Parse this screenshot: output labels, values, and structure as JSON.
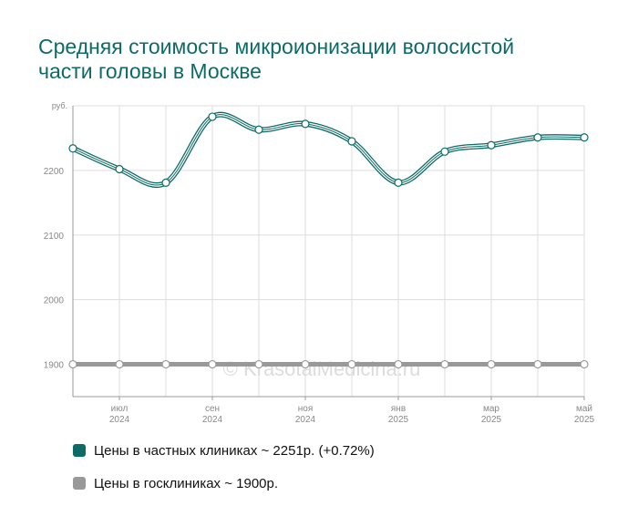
{
  "page": {
    "title": "Средняя стоимость микроионизации волосистой части головы в Москве"
  },
  "chart_data": {
    "type": "line",
    "unit": "руб.",
    "ylim": [
      1850,
      2300
    ],
    "yticks": [
      1900,
      2000,
      2100,
      2200
    ],
    "x": [
      0,
      1,
      2,
      3,
      4,
      5,
      6,
      7,
      8,
      9,
      10,
      11
    ],
    "xtick_labels": [
      {
        "i": 1,
        "month": "июл",
        "year": "2024"
      },
      {
        "i": 3,
        "month": "сен",
        "year": "2024"
      },
      {
        "i": 5,
        "month": "ноя",
        "year": "2024"
      },
      {
        "i": 7,
        "month": "янв",
        "year": "2025"
      },
      {
        "i": 9,
        "month": "мар",
        "year": "2025"
      },
      {
        "i": 11,
        "month": "май",
        "year": "2025"
      }
    ],
    "grid": true,
    "series": [
      {
        "name": "Цены в частных клиниках",
        "color": "#0d6b67",
        "values": [
          2234,
          2202,
          2181,
          2283,
          2263,
          2272,
          2245,
          2181,
          2229,
          2239,
          2251,
          2251
        ]
      },
      {
        "name": "Цены в госклиниках",
        "color": "#9a9a9a",
        "values": [
          1900,
          1900,
          1900,
          1900,
          1900,
          1900,
          1900,
          1900,
          1900,
          1900,
          1900,
          1900
        ]
      }
    ],
    "watermark": "© KrasotaiMedicina.ru"
  },
  "legend": {
    "items": [
      {
        "label": "Цены в частных клиниках ~ 2251р. (+0.72%)",
        "color": "#0d6b67"
      },
      {
        "label": "Цены в госклиниках ~ 1900р.",
        "color": "#999999"
      }
    ]
  }
}
